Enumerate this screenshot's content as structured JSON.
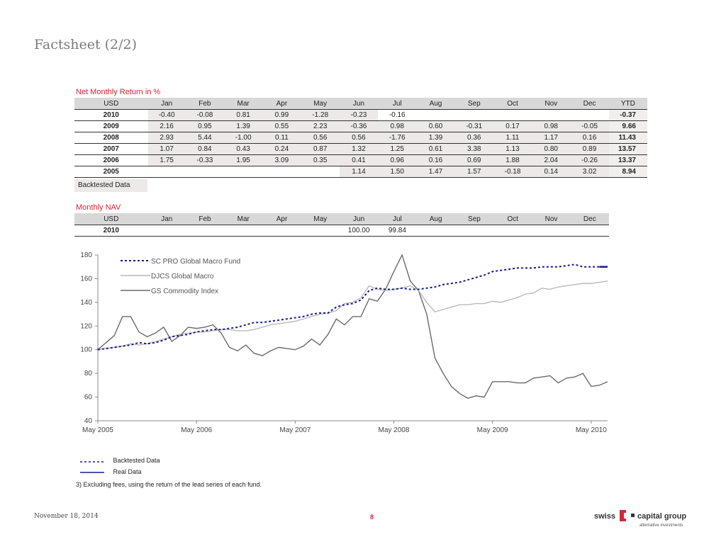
{
  "page_title": "Factsheet (2/2)",
  "returns": {
    "title": "Net Monthly Return in %",
    "headers": [
      "USD",
      "Jan",
      "Feb",
      "Mar",
      "Apr",
      "May",
      "Jun",
      "Jul",
      "Aug",
      "Sep",
      "Oct",
      "Nov",
      "Dec",
      "YTD"
    ],
    "rows": [
      {
        "year": "2010",
        "cells": [
          "-0.40",
          "-0.08",
          "0.81",
          "0.99",
          "-1.28",
          "-0.23",
          "-0.16",
          "",
          "",
          "",
          "",
          "",
          ""
        ],
        "ytd": "-0.37",
        "backtested": 6
      },
      {
        "year": "2009",
        "cells": [
          "2.16",
          "0.95",
          "1.39",
          "0.55",
          "2.23",
          "-0.36",
          "0.98",
          "0.60",
          "-0.31",
          "0.17",
          "0.98",
          "-0.05"
        ],
        "ytd": "9.66",
        "backtested": 12
      },
      {
        "year": "2008",
        "cells": [
          "2.93",
          "5.44",
          "-1.00",
          "0.11",
          "0.56",
          "0.56",
          "-1.76",
          "1.39",
          "0.36",
          "1.11",
          "1.17",
          "0.16"
        ],
        "ytd": "11.43",
        "backtested": 12
      },
      {
        "year": "2007",
        "cells": [
          "1.07",
          "0.84",
          "0.43",
          "0.24",
          "0.87",
          "1.32",
          "1.25",
          "0.61",
          "3.38",
          "1.13",
          "0.80",
          "0.89"
        ],
        "ytd": "13.57",
        "backtested": 12
      },
      {
        "year": "2006",
        "cells": [
          "1.75",
          "-0.33",
          "1.95",
          "3.09",
          "0.35",
          "0.41",
          "0.96",
          "0.16",
          "0.69",
          "1.88",
          "2.04",
          "-0.26"
        ],
        "ytd": "13.37",
        "backtested": 12
      },
      {
        "year": "2005",
        "cells": [
          "",
          "",
          "",
          "",
          "",
          "1.14",
          "1.50",
          "1.47",
          "1.57",
          "-0.18",
          "0.14",
          "3.02"
        ],
        "ytd": "8.94",
        "backtested": 12
      }
    ],
    "legend_label": "Backtested Data"
  },
  "nav": {
    "title": "Monthly NAV",
    "headers": [
      "USD",
      "Jan",
      "Feb",
      "Mar",
      "Apr",
      "May",
      "Jun",
      "Jul",
      "Aug",
      "Sep",
      "Oct",
      "Nov",
      "Dec"
    ],
    "row": {
      "year": "2010",
      "cells": [
        "",
        "",
        "",
        "",
        "",
        "100.00",
        "99.84",
        "",
        "",
        "",
        "",
        ""
      ]
    }
  },
  "chart_data": {
    "type": "line",
    "x_ticks": [
      "May 2005",
      "May 2006",
      "May 2007",
      "May 2008",
      "May 2009",
      "May 2010"
    ],
    "y_ticks": [
      40,
      60,
      80,
      100,
      120,
      140,
      160,
      180
    ],
    "ylim": [
      40,
      180
    ],
    "xlim": [
      0,
      62
    ],
    "grid": false,
    "legend_position": "top-left",
    "series": [
      {
        "name": "SC PRO Global Macro Fund",
        "color": "#1a1a8c",
        "style": "dashed",
        "values": [
          100,
          101,
          102,
          103,
          104,
          106,
          105,
          106,
          108,
          111,
          112,
          113,
          115,
          116,
          117,
          117,
          118,
          119,
          121,
          123,
          123,
          124,
          125,
          126,
          127,
          128,
          130,
          131,
          131,
          136,
          138,
          139,
          142,
          150,
          152,
          151,
          151,
          152,
          151,
          151,
          152,
          153,
          155,
          156,
          157,
          159,
          161,
          163,
          166,
          167,
          168,
          169,
          169,
          169,
          170,
          170,
          170,
          171,
          172,
          170,
          170,
          170,
          170
        ]
      },
      {
        "name": "DJCS Global Macro",
        "color": "#b9b9b9",
        "style": "solid",
        "values": [
          100,
          101,
          102,
          103,
          105,
          104,
          105,
          107,
          109,
          111,
          113,
          114,
          115,
          115,
          116,
          117,
          117,
          116,
          116,
          117,
          119,
          121,
          122,
          123,
          124,
          126,
          128,
          130,
          131,
          133,
          139,
          140,
          144,
          154,
          151,
          150,
          151,
          152,
          154,
          150,
          140,
          132,
          134,
          136,
          138,
          138,
          139,
          139,
          141,
          140,
          142,
          144,
          147,
          148,
          152,
          151,
          153,
          154,
          155,
          156,
          156,
          157,
          158
        ]
      },
      {
        "name": "GS Commodity Index",
        "color": "#6a6a6a",
        "style": "solid",
        "values": [
          100,
          106,
          112,
          128,
          128,
          115,
          111,
          114,
          119,
          107,
          112,
          119,
          118,
          119,
          121,
          114,
          102,
          99,
          104,
          97,
          95,
          99,
          102,
          101,
          100,
          103,
          109,
          104,
          113,
          126,
          121,
          128,
          128,
          143,
          141,
          151,
          166,
          180,
          158,
          150,
          130,
          93,
          80,
          69,
          63,
          59,
          61,
          60,
          73,
          73,
          73,
          72,
          72,
          76,
          77,
          78,
          72,
          76,
          77,
          80,
          69,
          70,
          73
        ]
      }
    ]
  },
  "bottom_legend": {
    "backtested": "Backtested Data",
    "real": "Real Data"
  },
  "note": "3) Excluding fees, using the return of the lead series of each fund.",
  "footer": {
    "date": "November 18, 2014",
    "page": "8"
  },
  "logo": {
    "word1": "swiss",
    "word2": "capital group",
    "tagline": "alternative investments",
    "accent": "#d2263a"
  }
}
